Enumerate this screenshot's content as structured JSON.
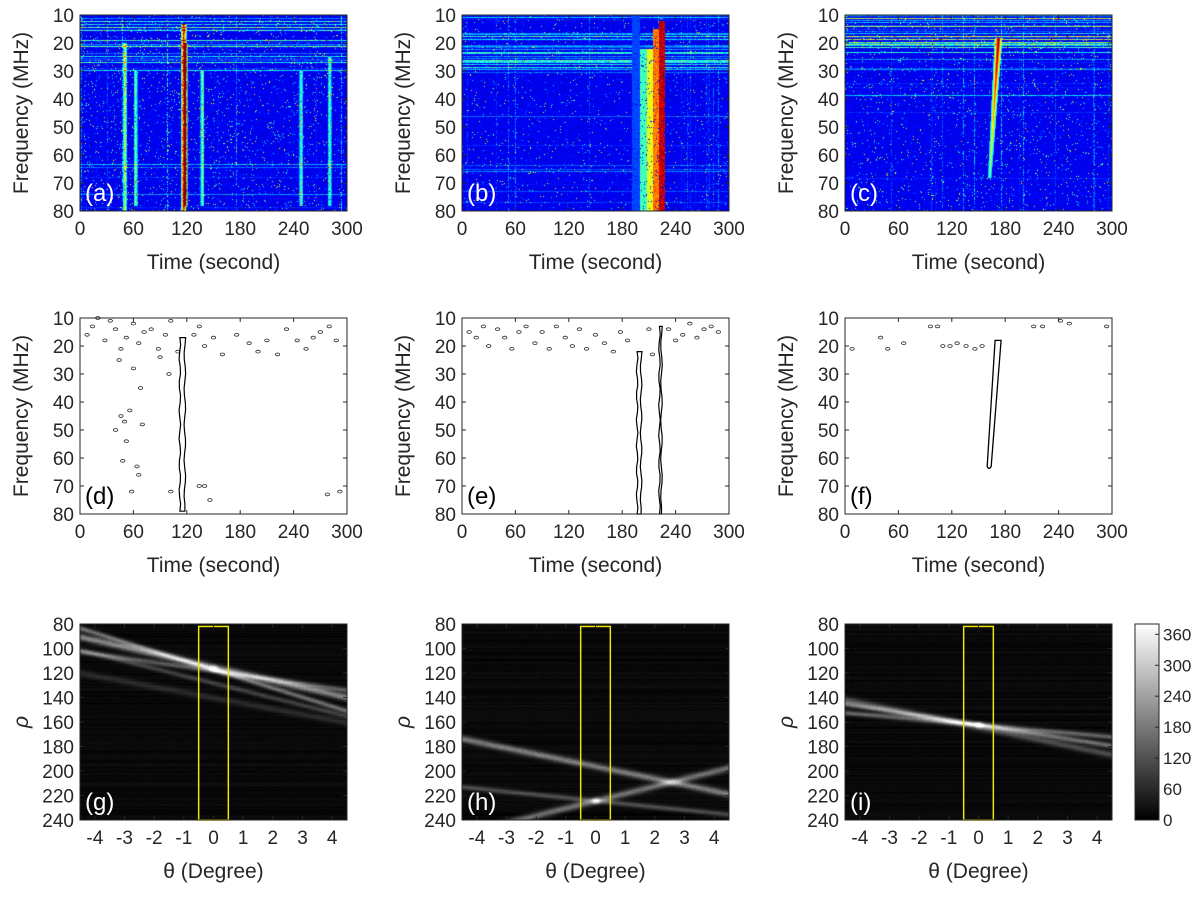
{
  "colors": {
    "axis": "#262626",
    "spectrum_bg": "#00008f",
    "hough_bg": "#000000",
    "highlight_box": "#e8e800"
  },
  "chart_data": [
    {
      "id": "a",
      "type": "heatmap",
      "panel_label": "(a)",
      "colormap": "jet",
      "xlabel": "Time (second)",
      "ylabel": "Frequency (MHz)",
      "xlim": [
        0,
        300
      ],
      "ylim": [
        10,
        80
      ],
      "y_reversed": true,
      "xticks": [
        "0",
        "60",
        "120",
        "180",
        "240",
        "300"
      ],
      "yticks": [
        "10",
        "20",
        "30",
        "40",
        "50",
        "60",
        "70",
        "80"
      ],
      "features": [
        {
          "kind": "vertical_burst",
          "time": 116,
          "f_start": 13,
          "f_end": 80,
          "intensity": 1.0,
          "width": 3
        },
        {
          "kind": "vertical_burst",
          "time": 118,
          "f_start": 20,
          "f_end": 78,
          "intensity": 0.75,
          "width": 2
        },
        {
          "kind": "vertical_burst",
          "time": 50,
          "f_start": 20,
          "f_end": 80,
          "intensity": 0.6,
          "width": 2
        },
        {
          "kind": "vertical_burst",
          "time": 62,
          "f_start": 30,
          "f_end": 78,
          "intensity": 0.5,
          "width": 2
        },
        {
          "kind": "vertical_burst",
          "time": 137,
          "f_start": 30,
          "f_end": 78,
          "intensity": 0.5,
          "width": 2
        },
        {
          "kind": "vertical_burst",
          "time": 248,
          "f_start": 30,
          "f_end": 78,
          "intensity": 0.45,
          "width": 2
        },
        {
          "kind": "vertical_burst",
          "time": 280,
          "f_start": 25,
          "f_end": 78,
          "intensity": 0.45,
          "width": 2
        }
      ],
      "noise_level": 0.55,
      "rfi_level": 0.5
    },
    {
      "id": "b",
      "type": "heatmap",
      "panel_label": "(b)",
      "colormap": "jet",
      "xlabel": "Time (second)",
      "ylabel": "Frequency (MHz)",
      "xlim": [
        0,
        300
      ],
      "ylim": [
        10,
        80
      ],
      "y_reversed": true,
      "xticks": [
        "0",
        "60",
        "120",
        "180",
        "240",
        "300"
      ],
      "yticks": [
        "10",
        "20",
        "30",
        "40",
        "50",
        "60",
        "70",
        "80"
      ],
      "features": [
        {
          "kind": "band",
          "t_start": 190,
          "t_end": 200,
          "f_start": 10,
          "f_end": 80,
          "intensity": 0.2
        },
        {
          "kind": "band",
          "t_start": 200,
          "t_end": 207,
          "f_start": 22,
          "f_end": 80,
          "intensity": 0.45
        },
        {
          "kind": "band",
          "t_start": 207,
          "t_end": 214,
          "f_start": 22,
          "f_end": 80,
          "intensity": 0.62
        },
        {
          "kind": "band",
          "t_start": 214,
          "t_end": 221,
          "f_start": 15,
          "f_end": 80,
          "intensity": 0.78
        },
        {
          "kind": "band",
          "t_start": 221,
          "t_end": 228,
          "f_start": 12,
          "f_end": 80,
          "intensity": 0.95
        }
      ],
      "noise_level": 0.3,
      "rfi_level": 0.45
    },
    {
      "id": "c",
      "type": "heatmap",
      "panel_label": "(c)",
      "colormap": "jet",
      "xlabel": "Time (second)",
      "ylabel": "Frequency (MHz)",
      "xlim": [
        0,
        300
      ],
      "ylim": [
        10,
        80
      ],
      "y_reversed": true,
      "xticks": [
        "0",
        "60",
        "120",
        "180",
        "240",
        "300"
      ],
      "yticks": [
        "10",
        "20",
        "30",
        "40",
        "50",
        "60",
        "70",
        "80"
      ],
      "features": [
        {
          "kind": "drifting_burst",
          "t_top": 172,
          "f_top": 18,
          "t_bottom": 162,
          "f_bottom": 68,
          "intensity": 1.0,
          "width": 4
        }
      ],
      "noise_level": 0.45,
      "rfi_level": 0.6
    },
    {
      "id": "d",
      "type": "contour",
      "panel_label": "(d)",
      "xlabel": "Time (second)",
      "ylabel": "Frequency (MHz)",
      "xlim": [
        0,
        300
      ],
      "ylim": [
        10,
        80
      ],
      "y_reversed": true,
      "xticks": [
        "0",
        "60",
        "120",
        "180",
        "240",
        "300"
      ],
      "yticks": [
        "10",
        "20",
        "30",
        "40",
        "50",
        "60",
        "70",
        "80"
      ],
      "segments": [
        {
          "t": 115,
          "f_start": 17,
          "f_end": 79,
          "width": 5
        }
      ],
      "blobs": [
        [
          8,
          16
        ],
        [
          14,
          13
        ],
        [
          20,
          10
        ],
        [
          28,
          18
        ],
        [
          34,
          11
        ],
        [
          40,
          14
        ],
        [
          46,
          21
        ],
        [
          52,
          17
        ],
        [
          60,
          12
        ],
        [
          66,
          19
        ],
        [
          72,
          15
        ],
        [
          80,
          14
        ],
        [
          88,
          21
        ],
        [
          96,
          16
        ],
        [
          102,
          11
        ],
        [
          110,
          22
        ],
        [
          128,
          16
        ],
        [
          134,
          13
        ],
        [
          140,
          20
        ],
        [
          150,
          17
        ],
        [
          160,
          23
        ],
        [
          176,
          16
        ],
        [
          190,
          19
        ],
        [
          200,
          22
        ],
        [
          210,
          18
        ],
        [
          222,
          23
        ],
        [
          232,
          14
        ],
        [
          244,
          18
        ],
        [
          254,
          21
        ],
        [
          262,
          17
        ],
        [
          270,
          15
        ],
        [
          280,
          13
        ],
        [
          288,
          18
        ],
        [
          46,
          45
        ],
        [
          50,
          47
        ],
        [
          56,
          43
        ],
        [
          40,
          50
        ],
        [
          52,
          54
        ],
        [
          64,
          63
        ],
        [
          66,
          66
        ],
        [
          58,
          72
        ],
        [
          48,
          61
        ],
        [
          102,
          72
        ],
        [
          134,
          70
        ],
        [
          140,
          70
        ],
        [
          146,
          75
        ],
        [
          278,
          73
        ],
        [
          292,
          72
        ],
        [
          60,
          28
        ],
        [
          68,
          35
        ],
        [
          90,
          24
        ],
        [
          100,
          30
        ],
        [
          44,
          25
        ],
        [
          70,
          48
        ]
      ]
    },
    {
      "id": "e",
      "type": "contour",
      "panel_label": "(e)",
      "xlabel": "Time (second)",
      "ylabel": "Frequency (MHz)",
      "xlim": [
        0,
        300
      ],
      "ylim": [
        10,
        80
      ],
      "y_reversed": true,
      "xticks": [
        "0",
        "60",
        "120",
        "180",
        "240",
        "300"
      ],
      "yticks": [
        "10",
        "20",
        "30",
        "40",
        "50",
        "60",
        "70",
        "80"
      ],
      "segments": [
        {
          "t": 199,
          "f_start": 22,
          "f_end": 80,
          "width": 4
        },
        {
          "t": 223,
          "f_start": 13,
          "f_end": 80,
          "width": 2
        }
      ],
      "blobs": [
        [
          8,
          15
        ],
        [
          16,
          17
        ],
        [
          24,
          13
        ],
        [
          30,
          20
        ],
        [
          40,
          14
        ],
        [
          48,
          17
        ],
        [
          56,
          21
        ],
        [
          64,
          15
        ],
        [
          72,
          13
        ],
        [
          82,
          19
        ],
        [
          90,
          15
        ],
        [
          98,
          21
        ],
        [
          106,
          13
        ],
        [
          116,
          17
        ],
        [
          124,
          20
        ],
        [
          132,
          14
        ],
        [
          140,
          21
        ],
        [
          150,
          16
        ],
        [
          160,
          19
        ],
        [
          170,
          22
        ],
        [
          178,
          15
        ],
        [
          186,
          18
        ],
        [
          232,
          14
        ],
        [
          240,
          18
        ],
        [
          248,
          16
        ],
        [
          256,
          12
        ],
        [
          264,
          17
        ],
        [
          272,
          14
        ],
        [
          280,
          13
        ],
        [
          288,
          15
        ],
        [
          210,
          14
        ],
        [
          214,
          23
        ]
      ]
    },
    {
      "id": "f",
      "type": "contour",
      "panel_label": "(f)",
      "xlabel": "Time (second)",
      "ylabel": "Frequency (MHz)",
      "xlim": [
        0,
        300
      ],
      "ylim": [
        10,
        80
      ],
      "y_reversed": true,
      "xticks": [
        "0",
        "60",
        "120",
        "180",
        "240",
        "300"
      ],
      "yticks": [
        "10",
        "20",
        "30",
        "40",
        "50",
        "60",
        "70",
        "80"
      ],
      "drift_contour": {
        "t_top": 172,
        "f_top": 18,
        "t_bottom": 162,
        "f_bottom": 63
      },
      "blobs": [
        [
          8,
          21
        ],
        [
          40,
          17
        ],
        [
          48,
          21
        ],
        [
          66,
          19
        ],
        [
          96,
          13
        ],
        [
          104,
          13
        ],
        [
          110,
          20
        ],
        [
          118,
          20
        ],
        [
          126,
          19
        ],
        [
          136,
          20
        ],
        [
          146,
          21
        ],
        [
          154,
          20
        ],
        [
          212,
          13
        ],
        [
          222,
          13
        ],
        [
          242,
          11
        ],
        [
          252,
          12
        ],
        [
          294,
          13
        ]
      ]
    },
    {
      "id": "g",
      "type": "heatmap",
      "panel_label": "(g)",
      "colormap": "gray",
      "xlabel": "θ (Degree)",
      "ylabel": "ρ",
      "xlim": [
        -4.5,
        4.5
      ],
      "ylim": [
        80,
        240
      ],
      "y_reversed": true,
      "xticks": [
        "-4",
        "-3",
        "-2",
        "-1",
        "0",
        "1",
        "2",
        "3",
        "4"
      ],
      "yticks": [
        "80",
        "100",
        "120",
        "140",
        "160",
        "180",
        "200",
        "220",
        "240"
      ],
      "highlight_box": {
        "theta": [
          -0.5,
          0.5
        ],
        "rho": [
          82,
          240
        ]
      },
      "sinusoids": [
        {
          "rho_at_0": 115,
          "slope": 5.5,
          "intensity": 0.55,
          "spread": 4
        },
        {
          "rho_at_0": 117,
          "slope": 7.5,
          "intensity": 0.45,
          "spread": 3
        },
        {
          "rho_at_0": 118,
          "slope": 3.5,
          "intensity": 0.35,
          "spread": 3
        },
        {
          "rho_at_0": 128,
          "slope": 6.0,
          "intensity": 0.25,
          "spread": 3
        },
        {
          "rho_at_0": 140,
          "slope": 4.5,
          "intensity": 0.15,
          "spread": 4
        }
      ],
      "peak": {
        "theta": 0,
        "rho": 116
      }
    },
    {
      "id": "h",
      "type": "heatmap",
      "panel_label": "(h)",
      "colormap": "gray",
      "xlabel": "θ (Degree)",
      "ylabel": "ρ",
      "xlim": [
        -4.5,
        4.5
      ],
      "ylim": [
        80,
        240
      ],
      "y_reversed": true,
      "xticks": [
        "-4",
        "-3",
        "-2",
        "-1",
        "0",
        "1",
        "2",
        "3",
        "4"
      ],
      "yticks": [
        "80",
        "100",
        "120",
        "140",
        "160",
        "180",
        "200",
        "220",
        "240"
      ],
      "highlight_box": {
        "theta": [
          -0.5,
          0.5
        ],
        "rho": [
          82,
          240
        ]
      },
      "sinusoids": [
        {
          "rho_at_0": 196,
          "slope": 5.0,
          "intensity": 0.5,
          "spread": 4
        },
        {
          "rho_at_0": 224,
          "slope": -6.0,
          "intensity": 0.45,
          "spread": 4
        },
        {
          "rho_at_0": 224,
          "slope": 2.5,
          "intensity": 0.3,
          "spread": 3
        }
      ],
      "peak": {
        "theta": 0,
        "rho": 224
      }
    },
    {
      "id": "i",
      "type": "heatmap",
      "panel_label": "(i)",
      "colormap": "gray",
      "xlabel": "θ (Degree)",
      "ylabel": "ρ",
      "xlim": [
        -4.5,
        4.5
      ],
      "ylim": [
        80,
        240
      ],
      "y_reversed": true,
      "xticks": [
        "-4",
        "-3",
        "-2",
        "-1",
        "0",
        "1",
        "2",
        "3",
        "4"
      ],
      "yticks": [
        "80",
        "100",
        "120",
        "140",
        "160",
        "180",
        "200",
        "220",
        "240"
      ],
      "highlight_box": {
        "theta": [
          -0.5,
          0.5
        ],
        "rho": [
          82,
          240
        ]
      },
      "sinusoids": [
        {
          "rho_at_0": 162,
          "slope": 3.8,
          "intensity": 0.45,
          "spread": 3
        },
        {
          "rho_at_0": 162,
          "slope": 2.2,
          "intensity": 0.4,
          "spread": 3
        },
        {
          "rho_at_0": 164,
          "slope": 5.0,
          "intensity": 0.3,
          "spread": 4
        }
      ],
      "peak": {
        "theta": 0,
        "rho": 162
      }
    },
    {
      "id": "colorbar",
      "type": "colorbar",
      "colormap": "gray",
      "range": [
        0,
        380
      ],
      "ticks": [
        0,
        60,
        120,
        180,
        240,
        300,
        360
      ],
      "tick_labels": [
        "0",
        "60",
        "120",
        "180",
        "240",
        "300",
        "360"
      ]
    }
  ]
}
